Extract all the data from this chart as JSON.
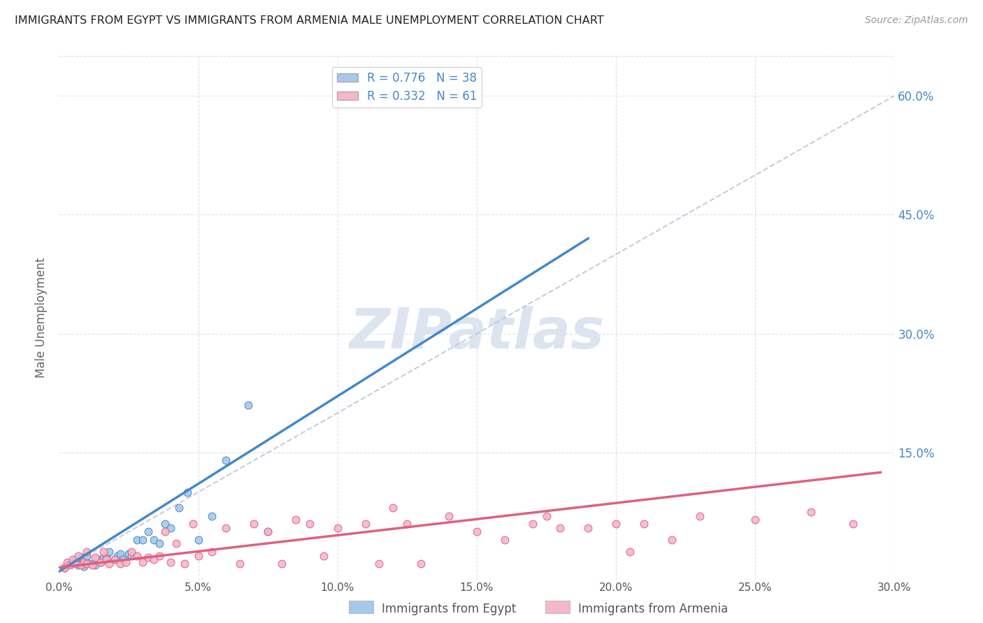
{
  "title": "IMMIGRANTS FROM EGYPT VS IMMIGRANTS FROM ARMENIA MALE UNEMPLOYMENT CORRELATION CHART",
  "source": "Source: ZipAtlas.com",
  "ylabel": "Male Unemployment",
  "x_tick_labels": [
    "0.0%",
    "5.0%",
    "10.0%",
    "15.0%",
    "20.0%",
    "25.0%",
    "30.0%"
  ],
  "x_tick_vals": [
    0.0,
    0.05,
    0.1,
    0.15,
    0.2,
    0.25,
    0.3
  ],
  "y_tick_labels_right": [
    "15.0%",
    "30.0%",
    "45.0%",
    "60.0%"
  ],
  "y_tick_vals": [
    0.15,
    0.3,
    0.45,
    0.6
  ],
  "xlim": [
    0.0,
    0.3
  ],
  "ylim": [
    -0.01,
    0.65
  ],
  "legend_label_egypt": "Immigrants from Egypt",
  "legend_label_armenia": "Immigrants from Armenia",
  "R_egypt": 0.776,
  "N_egypt": 38,
  "R_armenia": 0.332,
  "N_armenia": 61,
  "egypt_color": "#a8c8e8",
  "armenia_color": "#f4b8c8",
  "egypt_line_color": "#4488cc",
  "armenia_line_color": "#e06080",
  "ref_line_color": "#c0c8d8",
  "background_color": "#ffffff",
  "grid_color": "#dde0ea",
  "title_color": "#222222",
  "right_axis_color": "#4488cc",
  "watermark_color": "#dce4f0",
  "egypt_x": [
    0.002,
    0.003,
    0.004,
    0.005,
    0.006,
    0.007,
    0.008,
    0.008,
    0.009,
    0.01,
    0.01,
    0.012,
    0.013,
    0.014,
    0.015,
    0.016,
    0.017,
    0.018,
    0.02,
    0.021,
    0.022,
    0.023,
    0.025,
    0.026,
    0.028,
    0.03,
    0.032,
    0.034,
    0.036,
    0.038,
    0.04,
    0.043,
    0.046,
    0.05,
    0.055,
    0.06,
    0.068,
    0.075
  ],
  "egypt_y": [
    0.005,
    0.008,
    0.01,
    0.012,
    0.015,
    0.008,
    0.01,
    0.018,
    0.006,
    0.012,
    0.02,
    0.01,
    0.008,
    0.015,
    0.012,
    0.018,
    0.02,
    0.025,
    0.015,
    0.02,
    0.022,
    0.015,
    0.022,
    0.02,
    0.04,
    0.04,
    0.05,
    0.04,
    0.035,
    0.06,
    0.055,
    0.08,
    0.1,
    0.04,
    0.07,
    0.14,
    0.21,
    0.05
  ],
  "armenia_x": [
    0.002,
    0.003,
    0.004,
    0.005,
    0.006,
    0.007,
    0.008,
    0.009,
    0.01,
    0.01,
    0.012,
    0.013,
    0.015,
    0.016,
    0.017,
    0.018,
    0.02,
    0.022,
    0.024,
    0.026,
    0.028,
    0.03,
    0.032,
    0.034,
    0.036,
    0.038,
    0.04,
    0.042,
    0.045,
    0.048,
    0.05,
    0.055,
    0.06,
    0.065,
    0.07,
    0.075,
    0.08,
    0.085,
    0.09,
    0.095,
    0.1,
    0.11,
    0.115,
    0.12,
    0.125,
    0.13,
    0.14,
    0.15,
    0.16,
    0.17,
    0.175,
    0.18,
    0.19,
    0.2,
    0.205,
    0.21,
    0.22,
    0.23,
    0.25,
    0.27,
    0.285
  ],
  "armenia_y": [
    0.005,
    0.012,
    0.008,
    0.015,
    0.01,
    0.02,
    0.008,
    0.012,
    0.01,
    0.025,
    0.008,
    0.018,
    0.012,
    0.025,
    0.015,
    0.01,
    0.015,
    0.01,
    0.012,
    0.025,
    0.02,
    0.012,
    0.018,
    0.015,
    0.02,
    0.05,
    0.012,
    0.035,
    0.01,
    0.06,
    0.02,
    0.025,
    0.055,
    0.01,
    0.06,
    0.05,
    0.01,
    0.065,
    0.06,
    0.02,
    0.055,
    0.06,
    0.01,
    0.08,
    0.06,
    0.01,
    0.07,
    0.05,
    0.04,
    0.06,
    0.07,
    0.055,
    0.055,
    0.06,
    0.025,
    0.06,
    0.04,
    0.07,
    0.065,
    0.075,
    0.06
  ],
  "egypt_reg": [
    0.0,
    0.19,
    0.0,
    0.42
  ],
  "armenia_reg": [
    0.0,
    0.295,
    0.005,
    0.125
  ]
}
